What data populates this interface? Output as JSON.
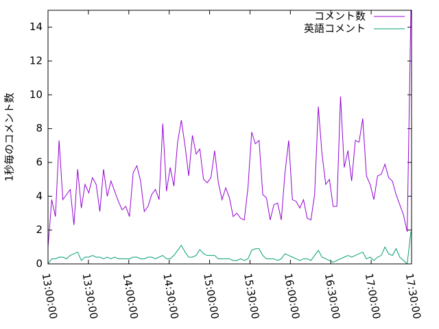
{
  "chart_data": {
    "type": "line",
    "ylabel": "1秒毎のコメント数",
    "x": [
      "13:00:00",
      "13:02:45",
      "13:05:30",
      "13:08:15",
      "13:11:00",
      "13:13:45",
      "13:16:30",
      "13:19:15",
      "13:22:00",
      "13:24:45",
      "13:27:30",
      "13:30:15",
      "13:33:00",
      "13:35:45",
      "13:38:30",
      "13:41:15",
      "13:44:00",
      "13:46:45",
      "13:49:30",
      "13:52:15",
      "13:55:00",
      "13:57:45",
      "14:00:30",
      "14:03:15",
      "14:06:00",
      "14:08:45",
      "14:11:30",
      "14:14:15",
      "14:17:00",
      "14:19:45",
      "14:22:30",
      "14:25:15",
      "14:28:00",
      "14:30:45",
      "14:33:30",
      "14:36:15",
      "14:39:00",
      "14:41:45",
      "14:44:30",
      "14:47:15",
      "14:50:00",
      "14:52:45",
      "14:55:30",
      "14:58:15",
      "15:01:00",
      "15:03:45",
      "15:06:30",
      "15:09:15",
      "15:12:00",
      "15:14:45",
      "15:17:30",
      "15:20:15",
      "15:23:00",
      "15:25:45",
      "15:28:30",
      "15:31:15",
      "15:34:00",
      "15:36:45",
      "15:39:30",
      "15:42:15",
      "15:45:00",
      "15:47:45",
      "15:50:30",
      "15:53:15",
      "15:56:00",
      "15:58:45",
      "16:01:30",
      "16:04:15",
      "16:07:00",
      "16:09:45",
      "16:12:30",
      "16:15:15",
      "16:18:00",
      "16:20:45",
      "16:23:30",
      "16:26:15",
      "16:29:00",
      "16:31:45",
      "16:34:30",
      "16:37:15",
      "16:40:00",
      "16:42:45",
      "16:45:30",
      "16:48:15",
      "16:51:00",
      "16:53:45",
      "16:56:30",
      "16:59:15",
      "17:02:00",
      "17:04:45",
      "17:07:30",
      "17:10:15",
      "17:13:00",
      "17:15:45",
      "17:18:30",
      "17:21:15",
      "17:24:00",
      "17:26:45",
      "17:29:30"
    ],
    "series": [
      {
        "name": "コメント数",
        "color": "#9400d3",
        "values": [
          1.0,
          3.8,
          2.8,
          7.3,
          3.8,
          4.1,
          4.4,
          2.3,
          5.6,
          3.3,
          4.7,
          4.2,
          5.1,
          4.7,
          3.1,
          5.6,
          4.0,
          4.9,
          4.3,
          3.7,
          3.2,
          3.4,
          2.8,
          5.4,
          5.8,
          4.9,
          3.1,
          3.4,
          4.1,
          4.4,
          3.8,
          8.3,
          4.3,
          5.7,
          4.6,
          7.2,
          8.5,
          7.0,
          5.2,
          7.6,
          6.5,
          6.8,
          5.0,
          4.8,
          5.1,
          6.7,
          4.8,
          3.8,
          4.5,
          3.9,
          2.8,
          3.0,
          2.7,
          2.6,
          4.5,
          7.8,
          7.1,
          7.3,
          4.1,
          3.9,
          2.6,
          3.5,
          3.6,
          2.6,
          5.4,
          7.3,
          3.8,
          3.7,
          3.3,
          3.8,
          2.7,
          2.6,
          4.1,
          9.3,
          6.5,
          4.7,
          5.0,
          3.4,
          3.4,
          9.9,
          5.7,
          6.7,
          4.9,
          7.3,
          7.2,
          8.6,
          5.2,
          4.7,
          3.8,
          5.2,
          5.3,
          5.9,
          5.1,
          4.9,
          4.1,
          3.5,
          2.9,
          1.9,
          15
        ]
      },
      {
        "name": "英語コメント",
        "color": "#009e73",
        "values": [
          0.0,
          0.3,
          0.3,
          0.4,
          0.4,
          0.3,
          0.5,
          0.6,
          0.7,
          0.2,
          0.4,
          0.4,
          0.5,
          0.4,
          0.4,
          0.3,
          0.4,
          0.3,
          0.4,
          0.3,
          0.3,
          0.3,
          0.3,
          0.4,
          0.4,
          0.3,
          0.3,
          0.4,
          0.4,
          0.3,
          0.4,
          0.5,
          0.3,
          0.3,
          0.5,
          0.8,
          1.1,
          0.7,
          0.4,
          0.4,
          0.5,
          0.85,
          0.6,
          0.5,
          0.5,
          0.5,
          0.3,
          0.3,
          0.3,
          0.3,
          0.2,
          0.2,
          0.3,
          0.2,
          0.3,
          0.8,
          0.9,
          0.9,
          0.5,
          0.3,
          0.3,
          0.3,
          0.2,
          0.3,
          0.6,
          0.5,
          0.4,
          0.3,
          0.2,
          0.3,
          0.3,
          0.2,
          0.5,
          0.8,
          0.4,
          0.3,
          0.2,
          0.1,
          0.2,
          0.3,
          0.4,
          0.5,
          0.4,
          0.5,
          0.6,
          0.7,
          0.3,
          0.4,
          0.2,
          0.4,
          0.5,
          1.0,
          0.6,
          0.5,
          0.9,
          0.4,
          0.2,
          0.0,
          1.9
        ]
      }
    ],
    "xlim": [
      "13:00:00",
      "17:30:00"
    ],
    "xticks": [
      "13:00:00",
      "13:30:00",
      "14:00:00",
      "14:30:00",
      "15:00:00",
      "15:30:00",
      "16:00:00",
      "16:30:00",
      "17:00:00",
      "17:30:00"
    ],
    "ylim": [
      0,
      15
    ],
    "yticks": [
      0,
      2,
      4,
      6,
      8,
      10,
      12,
      14
    ],
    "legend": "top-right"
  }
}
